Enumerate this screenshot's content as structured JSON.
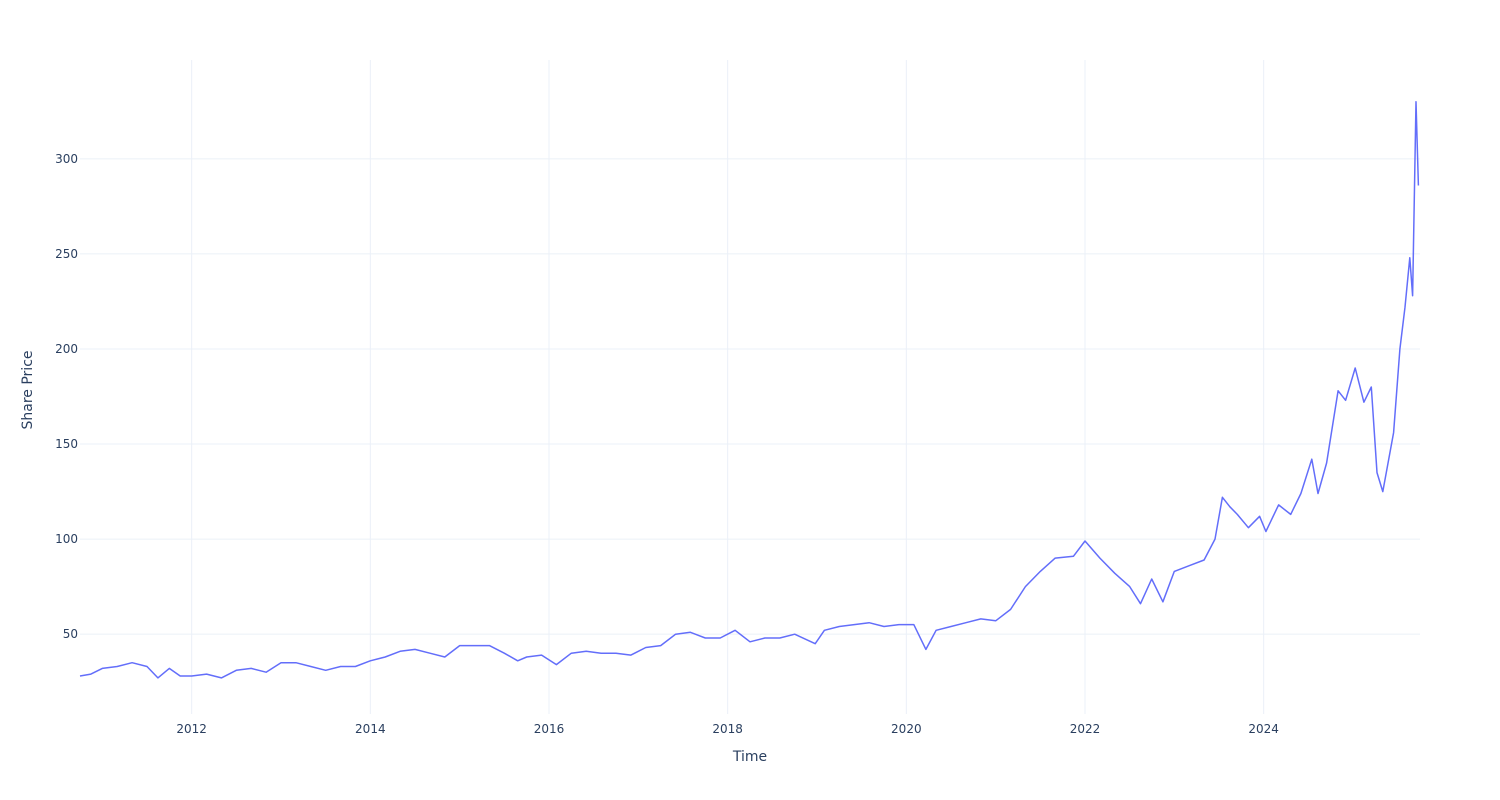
{
  "chart_data": {
    "type": "line",
    "title": "",
    "xlabel": "Time",
    "ylabel": "Share Price",
    "x_ticks": [
      "2012",
      "2014",
      "2016",
      "2018",
      "2020",
      "2022",
      "2024"
    ],
    "y_ticks": [
      "50",
      "100",
      "150",
      "200",
      "250",
      "300"
    ],
    "xlim": [
      "2010-10",
      "2025-10"
    ],
    "ylim": [
      8,
      352
    ],
    "grid": true,
    "legend": "none",
    "colors": {
      "series": "#636efa",
      "grid": "#ebf0f8",
      "text": "#2a3f5f",
      "background": "#ffffff"
    },
    "series": [
      {
        "x": [
          "2010-10-01",
          "2010-11-15",
          "2011-01-01",
          "2011-03-01",
          "2011-05-01",
          "2011-07-01",
          "2011-08-15",
          "2011-10-01",
          "2011-11-15",
          "2012-01-01",
          "2012-03-01",
          "2012-05-01",
          "2012-07-01",
          "2012-09-01",
          "2012-11-01",
          "2013-01-01",
          "2013-03-01",
          "2013-05-01",
          "2013-07-01",
          "2013-09-01",
          "2013-11-01",
          "2014-01-01",
          "2014-03-01",
          "2014-05-01",
          "2014-07-01",
          "2014-09-01",
          "2014-11-01",
          "2015-01-01",
          "2015-03-01",
          "2015-05-01",
          "2015-07-01",
          "2015-08-25",
          "2015-10-01",
          "2015-12-01",
          "2016-02-01",
          "2016-04-01",
          "2016-06-01",
          "2016-08-01",
          "2016-10-01",
          "2016-12-01",
          "2017-02-01",
          "2017-04-01",
          "2017-06-01",
          "2017-08-01",
          "2017-10-01",
          "2017-12-01",
          "2018-02-01",
          "2018-04-01",
          "2018-06-01",
          "2018-08-01",
          "2018-10-01",
          "2018-12-24",
          "2019-02-01",
          "2019-04-01",
          "2019-06-01",
          "2019-08-01",
          "2019-10-01",
          "2019-12-01",
          "2020-02-01",
          "2020-03-20",
          "2020-05-01",
          "2020-07-01",
          "2020-09-01",
          "2020-11-01",
          "2021-01-01",
          "2021-03-01",
          "2021-05-01",
          "2021-07-01",
          "2021-09-01",
          "2021-11-15",
          "2022-01-01",
          "2022-03-01",
          "2022-05-01",
          "2022-07-01",
          "2022-08-15",
          "2022-09-30",
          "2022-11-15",
          "2023-01-01",
          "2023-03-01",
          "2023-05-01",
          "2023-06-15",
          "2023-07-15",
          "2023-08-15",
          "2023-09-15",
          "2023-10-30",
          "2023-12-15",
          "2024-01-10",
          "2024-03-01",
          "2024-04-20",
          "2024-06-01",
          "2024-07-15",
          "2024-08-10",
          "2024-09-15",
          "2024-11-01",
          "2024-12-01",
          "2025-01-10",
          "2025-02-15",
          "2025-03-15",
          "2025-04-08",
          "2025-05-01",
          "2025-06-15",
          "2025-07-10",
          "2025-07-31",
          "2025-08-20",
          "2025-09-01",
          "2025-09-15",
          "2025-09-25"
        ],
        "values": [
          28,
          29,
          32,
          33,
          35,
          33,
          27,
          32,
          28,
          28,
          29,
          27,
          31,
          32,
          30,
          35,
          35,
          33,
          31,
          33,
          33,
          36,
          38,
          41,
          42,
          40,
          38,
          44,
          44,
          44,
          40,
          36,
          38,
          39,
          34,
          40,
          41,
          40,
          40,
          39,
          43,
          44,
          50,
          51,
          48,
          48,
          52,
          46,
          48,
          48,
          50,
          45,
          52,
          54,
          55,
          56,
          54,
          55,
          55,
          42,
          52,
          54,
          56,
          58,
          57,
          63,
          75,
          83,
          90,
          91,
          99,
          90,
          82,
          75,
          66,
          79,
          67,
          83,
          86,
          89,
          100,
          122,
          117,
          113,
          106,
          112,
          104,
          118,
          113,
          124,
          142,
          124,
          140,
          178,
          173,
          190,
          172,
          180,
          135,
          125,
          156,
          200,
          222,
          248,
          228,
          330,
          286
        ]
      }
    ]
  }
}
